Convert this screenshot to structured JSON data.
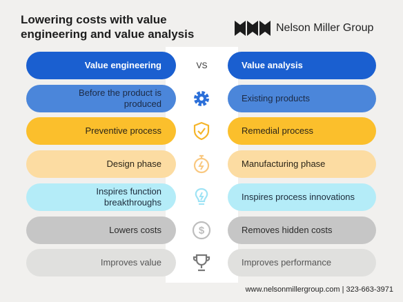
{
  "header": {
    "title_lines": [
      "Lowering costs with value",
      "engineering and value analysis"
    ],
    "logo": "Nelson Miller Group"
  },
  "vs": "VS",
  "rows": [
    {
      "left": "Value engineering",
      "right": "Value analysis"
    },
    {
      "left": "Before the product is produced",
      "right": "Existing products"
    },
    {
      "left": "Preventive process",
      "right": "Remedial process"
    },
    {
      "left": "Design phase",
      "right": "Manufacturing phase"
    },
    {
      "left": "Inspires function breakthroughs",
      "right": "Inspires process innovations"
    },
    {
      "left": "Lowers costs",
      "right": "Removes hidden costs"
    },
    {
      "left": "Improves value",
      "right": "Improves performance"
    }
  ],
  "footer": "www.nelsonmillergroup.com | 323-663-3971"
}
